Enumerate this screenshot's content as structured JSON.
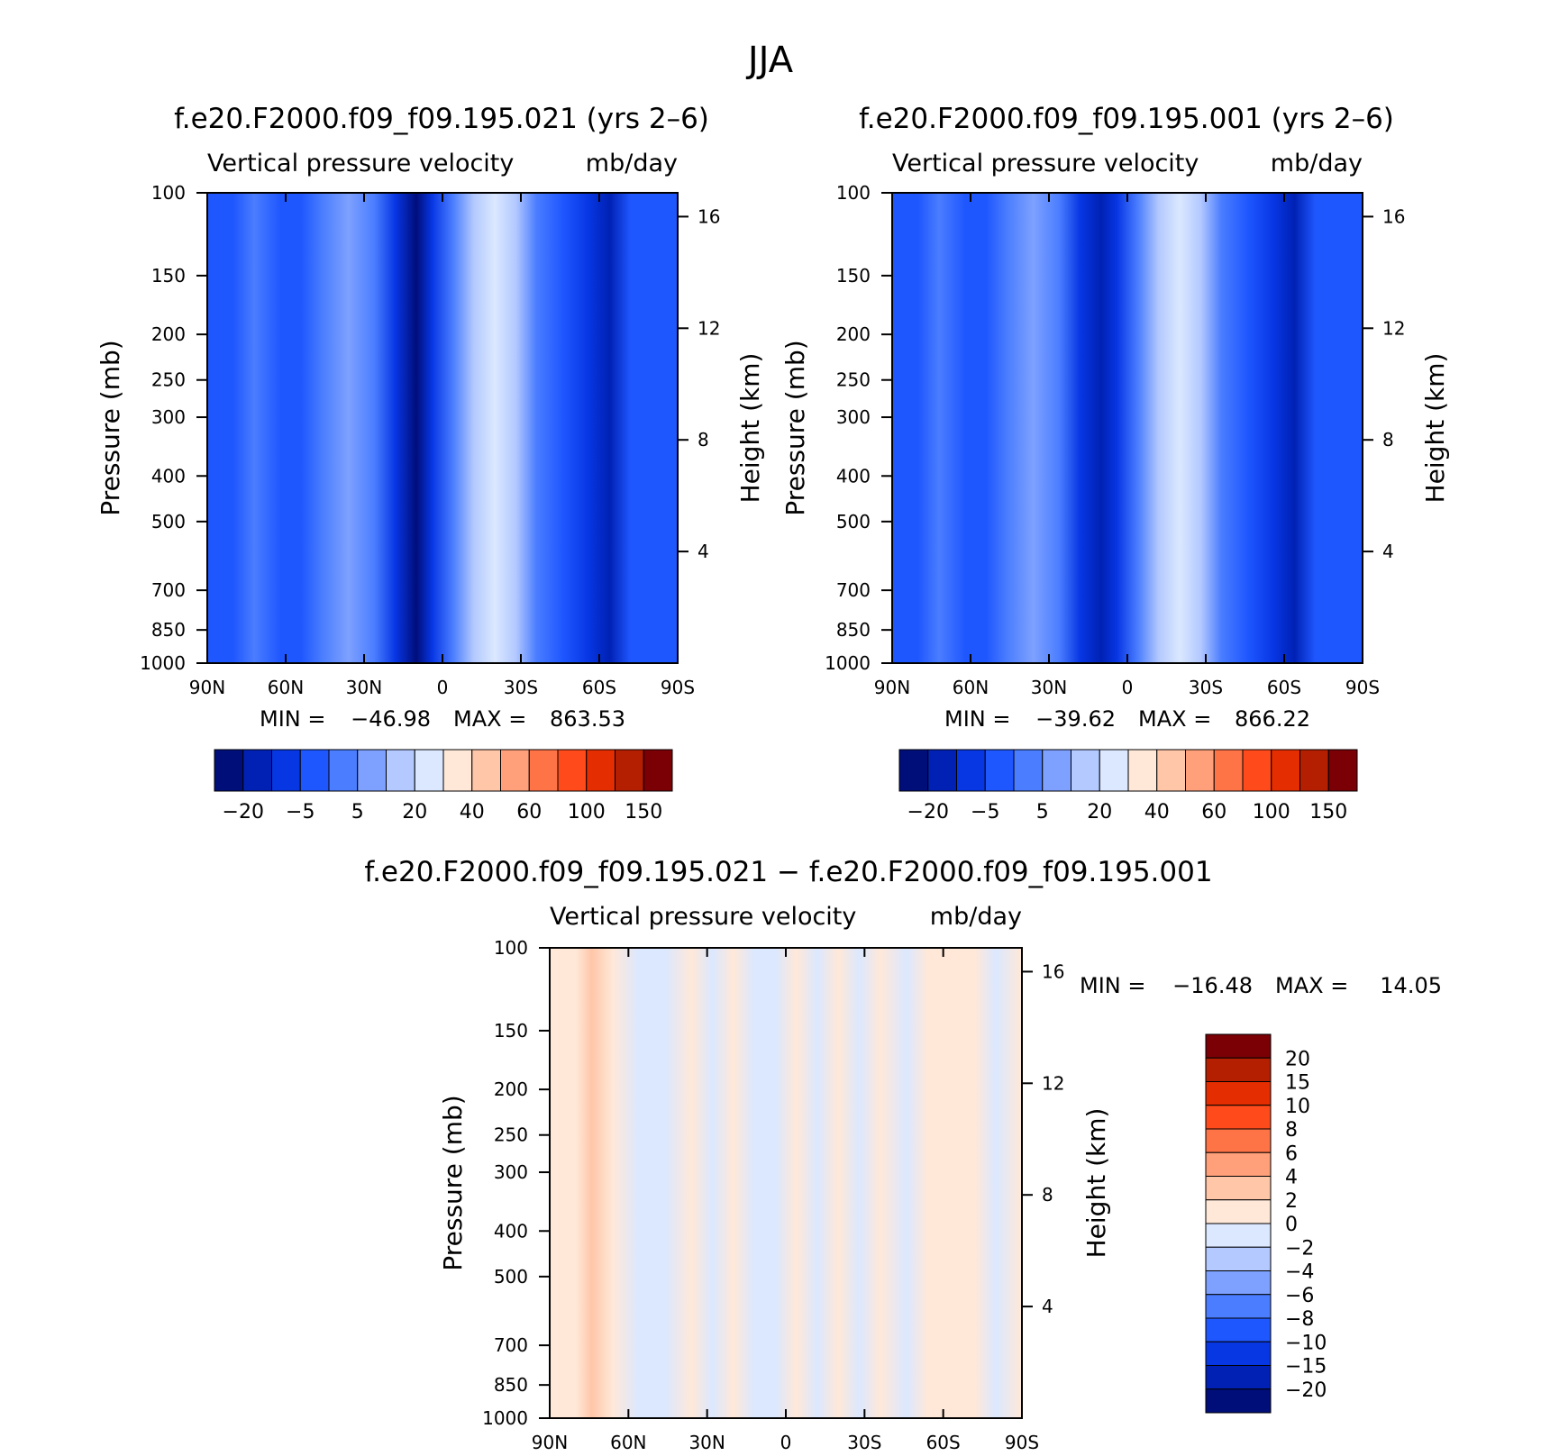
{
  "figure": {
    "title": "JJA"
  },
  "palettes": {
    "field": [
      "#000e7a",
      "#0021b3",
      "#0736e3",
      "#1f57ff",
      "#4a7dff",
      "#7ea1ff",
      "#b3c9ff",
      "#dbe8ff",
      "#ffe8d8",
      "#ffc6a8",
      "#ffa07a",
      "#ff7447",
      "#ff4b1b",
      "#e42d00",
      "#b31f00",
      "#7a0006"
    ],
    "diff": [
      "#000e7a",
      "#0021b3",
      "#0736e3",
      "#1f57ff",
      "#4a7dff",
      "#7ea1ff",
      "#b3c9ff",
      "#dbe8ff",
      "#ffe8d8",
      "#ffc6a8",
      "#ffa07a",
      "#ff7447",
      "#ff4b1b",
      "#e42d00",
      "#b31f00",
      "#7a0006"
    ]
  },
  "chart_data": [
    {
      "type": "heatmap",
      "title": "f.e20.F2000.f09_f09.195.021 (yrs 2–6)",
      "subtitle": "Vertical pressure velocity",
      "units": "mb/day",
      "ylabel": "Pressure (mb)",
      "y2label": "Height (km)",
      "xticks": [
        "90N",
        "60N",
        "30N",
        "0",
        "30S",
        "60S",
        "90S"
      ],
      "yticks": [
        "100",
        "150",
        "200",
        "250",
        "300",
        "400",
        "500",
        "700",
        "850",
        "1000"
      ],
      "y2ticks": [
        "16",
        "12",
        "8",
        "4"
      ],
      "ylim": [
        1000,
        100
      ],
      "xlim": [
        90,
        -90
      ],
      "stats": {
        "min_label": "MIN =",
        "min": "−46.98",
        "max_label": "MAX =",
        "max": "863.53"
      },
      "colorbar": {
        "orientation": "horizontal",
        "labels": [
          "−20",
          "−5",
          "5",
          "20",
          "40",
          "60",
          "100",
          "150"
        ]
      },
      "columns": [
        {
          "lat": 90,
          "level": 3
        },
        {
          "lat": 80,
          "level": 3
        },
        {
          "lat": 72,
          "level": 4
        },
        {
          "lat": 62,
          "level": 3
        },
        {
          "lat": 54,
          "level": 3
        },
        {
          "lat": 46,
          "level": 4
        },
        {
          "lat": 36,
          "level": 5
        },
        {
          "lat": 26,
          "level": 4
        },
        {
          "lat": 18,
          "level": 2
        },
        {
          "lat": 10,
          "level": 0
        },
        {
          "lat": 4,
          "level": 2
        },
        {
          "lat": -4,
          "level": 4
        },
        {
          "lat": -12,
          "level": 6
        },
        {
          "lat": -20,
          "level": 7
        },
        {
          "lat": -28,
          "level": 6
        },
        {
          "lat": -36,
          "level": 4
        },
        {
          "lat": -46,
          "level": 3
        },
        {
          "lat": -56,
          "level": 2
        },
        {
          "lat": -64,
          "level": 1
        },
        {
          "lat": -72,
          "level": 3
        },
        {
          "lat": -80,
          "level": 3
        },
        {
          "lat": -90,
          "level": 3
        }
      ]
    },
    {
      "type": "heatmap",
      "title": "f.e20.F2000.f09_f09.195.001 (yrs 2–6)",
      "subtitle": "Vertical pressure velocity",
      "units": "mb/day",
      "ylabel": "Pressure (mb)",
      "y2label": "Height (km)",
      "xticks": [
        "90N",
        "60N",
        "30N",
        "0",
        "30S",
        "60S",
        "90S"
      ],
      "yticks": [
        "100",
        "150",
        "200",
        "250",
        "300",
        "400",
        "500",
        "700",
        "850",
        "1000"
      ],
      "y2ticks": [
        "16",
        "12",
        "8",
        "4"
      ],
      "ylim": [
        1000,
        100
      ],
      "xlim": [
        90,
        -90
      ],
      "stats": {
        "min_label": "MIN =",
        "min": "−39.62",
        "max_label": "MAX =",
        "max": "866.22"
      },
      "colorbar": {
        "orientation": "horizontal",
        "labels": [
          "−20",
          "−5",
          "5",
          "20",
          "40",
          "60",
          "100",
          "150"
        ]
      },
      "columns": [
        {
          "lat": 90,
          "level": 3
        },
        {
          "lat": 80,
          "level": 3
        },
        {
          "lat": 72,
          "level": 4
        },
        {
          "lat": 62,
          "level": 3
        },
        {
          "lat": 54,
          "level": 3
        },
        {
          "lat": 46,
          "level": 4
        },
        {
          "lat": 36,
          "level": 5
        },
        {
          "lat": 26,
          "level": 4
        },
        {
          "lat": 18,
          "level": 2
        },
        {
          "lat": 10,
          "level": 1
        },
        {
          "lat": 4,
          "level": 2
        },
        {
          "lat": -4,
          "level": 4
        },
        {
          "lat": -12,
          "level": 6
        },
        {
          "lat": -20,
          "level": 7
        },
        {
          "lat": -28,
          "level": 6
        },
        {
          "lat": -36,
          "level": 4
        },
        {
          "lat": -46,
          "level": 3
        },
        {
          "lat": -56,
          "level": 2
        },
        {
          "lat": -64,
          "level": 1
        },
        {
          "lat": -72,
          "level": 3
        },
        {
          "lat": -80,
          "level": 3
        },
        {
          "lat": -90,
          "level": 3
        }
      ]
    },
    {
      "type": "heatmap",
      "title": "f.e20.F2000.f09_f09.195.021 − f.e20.F2000.f09_f09.195.001",
      "subtitle": "Vertical pressure velocity",
      "units": "mb/day",
      "ylabel": "Pressure (mb)",
      "y2label": "Height (km)",
      "xticks": [
        "90N",
        "60N",
        "30N",
        "0",
        "30S",
        "60S",
        "90S"
      ],
      "yticks": [
        "100",
        "150",
        "200",
        "250",
        "300",
        "400",
        "500",
        "700",
        "850",
        "1000"
      ],
      "y2ticks": [
        "16",
        "12",
        "8",
        "4"
      ],
      "ylim": [
        1000,
        100
      ],
      "xlim": [
        90,
        -90
      ],
      "stats": {
        "min_label": "MIN =",
        "min": "−16.48",
        "max_label": "MAX =",
        "max": "14.05"
      },
      "colorbar": {
        "orientation": "vertical",
        "labels": [
          "20",
          "15",
          "10",
          "8",
          "6",
          "4",
          "2",
          "0",
          "−2",
          "−4",
          "−6",
          "−8",
          "−10",
          "−15",
          "−20"
        ]
      },
      "columns": [
        {
          "lat": 90,
          "level": 8
        },
        {
          "lat": 80,
          "level": 8
        },
        {
          "lat": 74,
          "level": 9
        },
        {
          "lat": 66,
          "level": 8
        },
        {
          "lat": 56,
          "level": 7
        },
        {
          "lat": 46,
          "level": 7
        },
        {
          "lat": 36,
          "level": 8
        },
        {
          "lat": 28,
          "level": 7
        },
        {
          "lat": 20,
          "level": 8
        },
        {
          "lat": 12,
          "level": 7
        },
        {
          "lat": 4,
          "level": 7
        },
        {
          "lat": -4,
          "level": 8
        },
        {
          "lat": -12,
          "level": 7
        },
        {
          "lat": -20,
          "level": 8
        },
        {
          "lat": -28,
          "level": 7
        },
        {
          "lat": -36,
          "level": 8
        },
        {
          "lat": -46,
          "level": 7
        },
        {
          "lat": -54,
          "level": 8
        },
        {
          "lat": -62,
          "level": 8
        },
        {
          "lat": -72,
          "level": 8
        },
        {
          "lat": -80,
          "level": 7
        },
        {
          "lat": -90,
          "level": 8
        }
      ]
    }
  ]
}
